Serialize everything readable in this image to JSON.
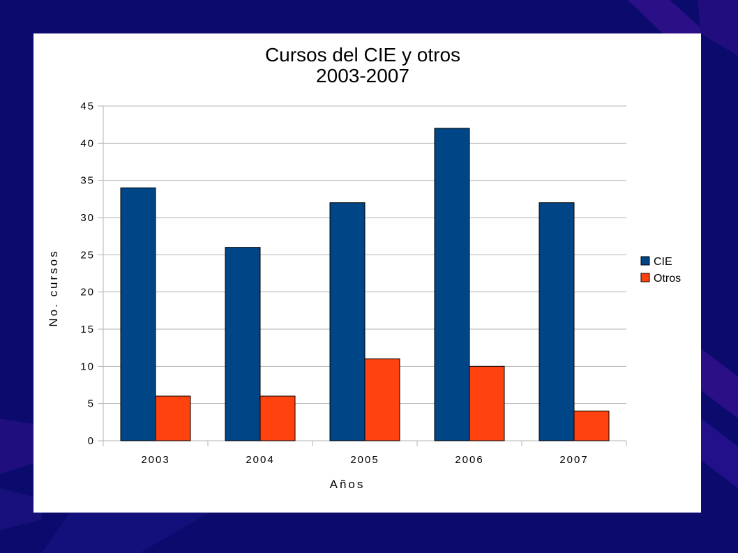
{
  "colors": {
    "background": "#0b0b6e",
    "stripe": "#2a0f86",
    "card": "#ffffff",
    "grid": "#b3b3b3",
    "cie": "#004586",
    "otros": "#ff420e"
  },
  "chart_data": {
    "type": "bar",
    "title": [
      "Cursos del CIE y otros",
      "2003-2007"
    ],
    "xlabel": "Años",
    "ylabel": "No. cursos",
    "categories": [
      "2003",
      "2004",
      "2005",
      "2006",
      "2007"
    ],
    "series": [
      {
        "name": "CIE",
        "values": [
          34,
          26,
          32,
          42,
          32
        ]
      },
      {
        "name": "Otros",
        "values": [
          6,
          6,
          11,
          10,
          4
        ]
      }
    ],
    "ylim": [
      0,
      45
    ],
    "yticks": [
      "0",
      "5",
      "10",
      "15",
      "20",
      "25",
      "30",
      "35",
      "40",
      "45"
    ],
    "grid": true,
    "legend": "right"
  }
}
